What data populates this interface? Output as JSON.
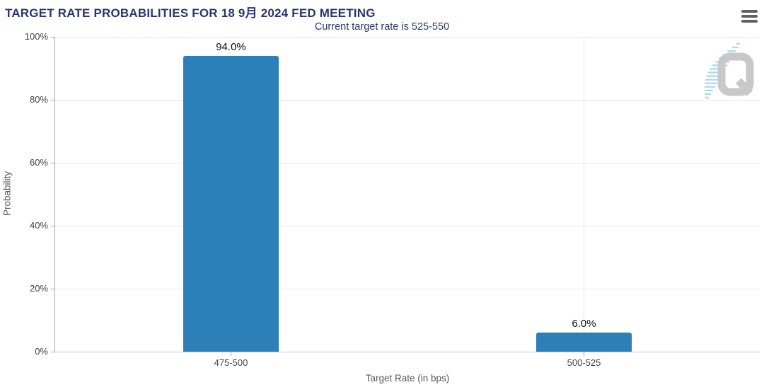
{
  "header": {
    "menu_tooltip": "Chart context menu"
  },
  "chart_data": {
    "type": "bar",
    "title": "TARGET RATE PROBABILITIES FOR 18 9月 2024 FED MEETING",
    "subtitle": "Current target rate is 525-550",
    "categories": [
      "475-500",
      "500-525"
    ],
    "values": [
      94.0,
      6.0
    ],
    "value_labels": [
      "94.0%",
      "6.0%"
    ],
    "xlabel": "Target Rate (in bps)",
    "ylabel": "Probability",
    "ylim": [
      0,
      100
    ],
    "yticks": [
      0,
      20,
      40,
      60,
      80,
      100
    ],
    "ytick_labels": [
      "0%",
      "20%",
      "40%",
      "60%",
      "80%",
      "100%"
    ],
    "grid": true,
    "legend": "none",
    "bar_color": "#2c7fb8",
    "colors": {
      "title_text": "#2a356f",
      "gridline": "#e6e6e6",
      "axis_line": "#a6a6a6",
      "zero_line": "#c8c8c8",
      "watermark_gray": "#c8c8c8",
      "watermark_blue": "#a9d7f4"
    }
  },
  "watermark": {
    "letter": "Q"
  }
}
